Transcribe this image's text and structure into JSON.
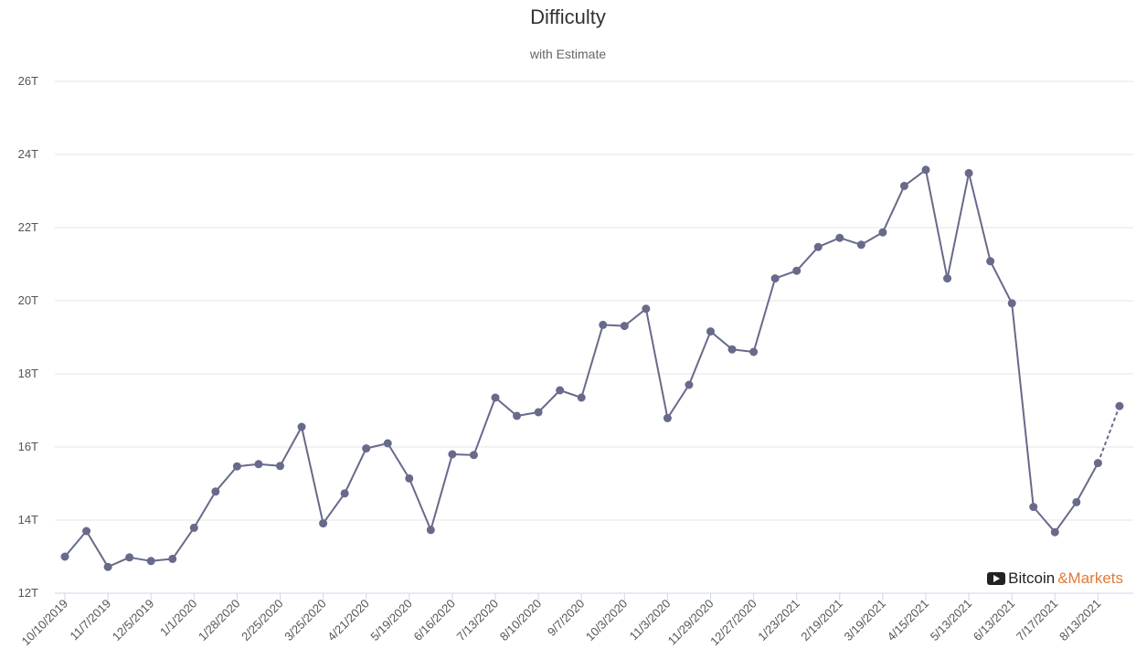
{
  "chart_data": {
    "type": "line",
    "title": "Difficulty",
    "subtitle": "with Estimate",
    "xlabel": "",
    "ylabel": "",
    "ylim": [
      12,
      26
    ],
    "y_unit": "T",
    "y_ticks": [
      "12T",
      "14T",
      "16T",
      "18T",
      "20T",
      "22T",
      "24T",
      "26T"
    ],
    "x_tick_labels": [
      "10/10/2019",
      "11/7/2019",
      "12/5/2019",
      "1/1/2020",
      "1/28/2020",
      "2/25/2020",
      "3/25/2020",
      "4/21/2020",
      "5/19/2020",
      "6/16/2020",
      "7/13/2020",
      "8/10/2020",
      "9/7/2020",
      "10/3/2020",
      "11/3/2020",
      "11/29/2020",
      "12/27/2020",
      "1/23/2021",
      "2/19/2021",
      "3/19/2021",
      "4/15/2021",
      "5/13/2021",
      "6/13/2021",
      "7/17/2021",
      "8/13/2021"
    ],
    "grid": true,
    "line_color": "#676a8a",
    "series": [
      {
        "values": [
          13.0,
          13.7,
          12.72,
          12.98,
          12.88,
          12.94,
          13.79,
          14.78,
          15.47,
          15.53,
          15.48,
          16.55,
          13.91,
          14.73,
          15.96,
          16.1,
          15.14,
          13.73,
          15.8,
          15.78,
          17.35,
          16.85,
          16.95,
          17.55,
          17.35,
          19.34,
          19.31,
          19.78,
          16.79,
          17.7,
          19.16,
          18.67,
          18.6,
          20.61,
          20.82,
          21.47,
          21.72,
          21.53,
          21.87,
          23.14,
          23.58,
          20.61,
          23.49,
          21.08,
          19.93,
          14.36,
          13.67,
          14.49,
          15.56
        ]
      },
      {
        "values": [
          15.56,
          17.12
        ]
      }
    ]
  },
  "watermark": {
    "icon": "play-icon",
    "part1": "Bitcoin",
    "part2": "&Markets",
    "color2": "#e07b39"
  }
}
